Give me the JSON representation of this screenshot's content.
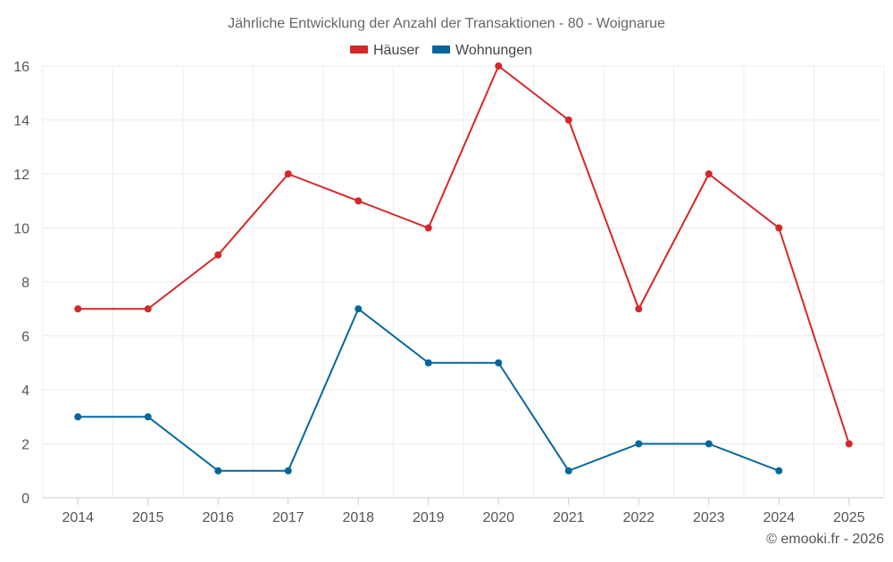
{
  "chart_data": {
    "type": "line",
    "title": "Jährliche Entwicklung der Anzahl der Transaktionen - 80 - Woignarue",
    "xlabel": "",
    "ylabel": "",
    "categories": [
      "2014",
      "2015",
      "2016",
      "2017",
      "2018",
      "2019",
      "2020",
      "2021",
      "2022",
      "2023",
      "2024",
      "2025"
    ],
    "ylim": [
      0,
      16
    ],
    "yticks": [
      0,
      2,
      4,
      6,
      8,
      10,
      12,
      14,
      16
    ],
    "grid": true,
    "legend_position": "top-center",
    "series": [
      {
        "name": "Häuser",
        "color": "#d62728",
        "values": [
          7,
          7,
          9,
          12,
          11,
          10,
          16,
          14,
          7,
          12,
          10,
          2
        ]
      },
      {
        "name": "Wohnungen",
        "color": "#04679c",
        "values": [
          3,
          3,
          1,
          1,
          7,
          5,
          5,
          1,
          2,
          2,
          1,
          null
        ]
      }
    ],
    "credit": "© emooki.fr - 2026"
  }
}
